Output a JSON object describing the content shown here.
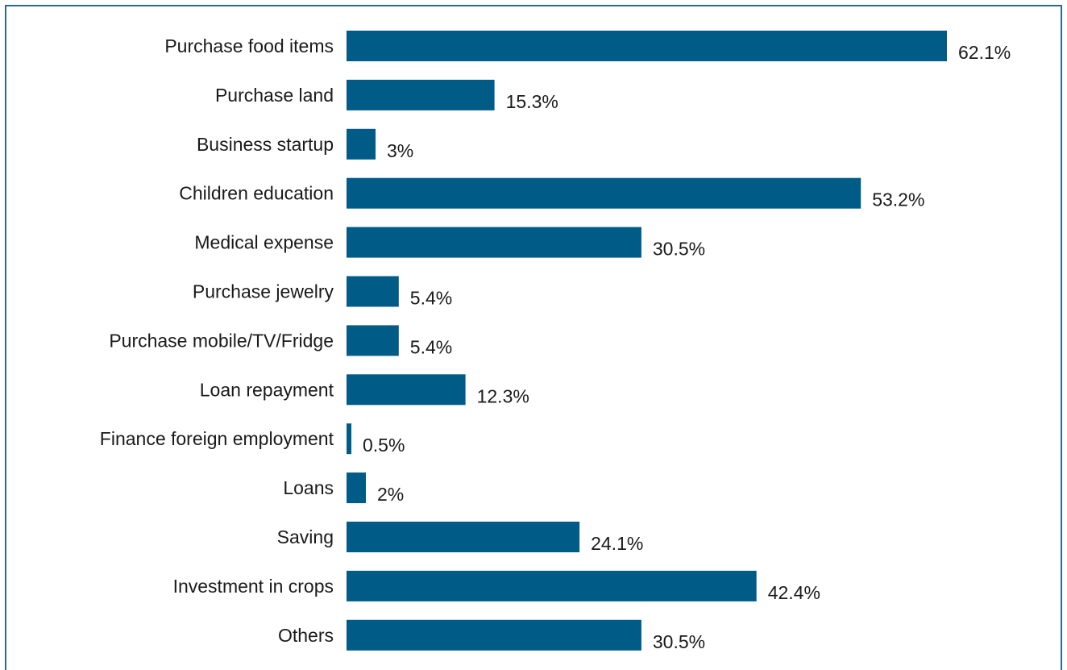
{
  "chart_data": {
    "type": "bar",
    "orientation": "horizontal",
    "categories": [
      "Purchase food items",
      "Purchase land",
      "Business startup",
      "Children education",
      "Medical expense",
      "Purchase jewelry",
      "Purchase mobile/TV/Fridge",
      "Loan repayment",
      "Finance foreign employment",
      "Loans",
      "Saving",
      "Investment in crops",
      "Others"
    ],
    "values": [
      62.1,
      15.3,
      3,
      53.2,
      30.5,
      5.4,
      5.4,
      12.3,
      0.5,
      2,
      24.1,
      42.4,
      30.5
    ],
    "value_labels": [
      "62.1%",
      "15.3%",
      "3%",
      "53.2%",
      "30.5%",
      "5.4%",
      "5.4%",
      "12.3%",
      "0.5%",
      "2%",
      "24.1%",
      "42.4%",
      "30.5%"
    ],
    "title": "",
    "xlabel": "",
    "ylabel": "",
    "xlim": [
      0,
      62.1
    ],
    "grid": false,
    "legend": "none",
    "bar_color": "#005c87",
    "frame_color": "#2c6a8e"
  }
}
